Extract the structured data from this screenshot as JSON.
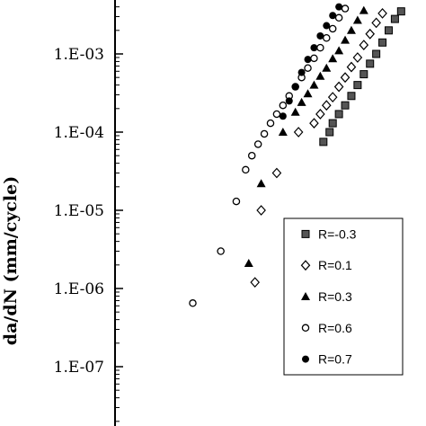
{
  "chart_data": {
    "type": "scatter",
    "title": "",
    "xlabel": "",
    "ylabel": "da/dN (mm/cycle)",
    "yscale": "log",
    "y_ticks": [
      "1.E-03",
      "1.E-04",
      "1.E-05",
      "1.E-06",
      "1.E-07"
    ],
    "y_tick_values": [
      0.001,
      0.0001,
      1e-05,
      1e-06,
      1e-07
    ],
    "ylim": [
      1e-08,
      0.01
    ],
    "xlim": [
      0,
      1
    ],
    "x_ticks": [],
    "grid": false,
    "legend_position": "bottom-right",
    "series": [
      {
        "name": "R=-0.3",
        "marker": "square",
        "points": [
          [
            0.67,
            7.5e-05
          ],
          [
            0.69,
            0.0001
          ],
          [
            0.7,
            0.00013
          ],
          [
            0.72,
            0.00017
          ],
          [
            0.74,
            0.00022
          ],
          [
            0.76,
            0.00029
          ],
          [
            0.78,
            0.0004
          ],
          [
            0.8,
            0.00055
          ],
          [
            0.82,
            0.00075
          ],
          [
            0.84,
            0.001
          ],
          [
            0.86,
            0.0014
          ],
          [
            0.88,
            0.002
          ],
          [
            0.9,
            0.0028
          ],
          [
            0.92,
            0.0035
          ]
        ]
      },
      {
        "name": "R=0.1",
        "marker": "diamond",
        "points": [
          [
            0.45,
            1.2e-06
          ],
          [
            0.47,
            1e-05
          ],
          [
            0.52,
            3e-05
          ],
          [
            0.59,
            0.0001
          ],
          [
            0.64,
            0.00013
          ],
          [
            0.66,
            0.00017
          ],
          [
            0.68,
            0.00022
          ],
          [
            0.7,
            0.00028
          ],
          [
            0.72,
            0.00038
          ],
          [
            0.74,
            0.0005
          ],
          [
            0.76,
            0.00068
          ],
          [
            0.78,
            0.0009
          ],
          [
            0.8,
            0.0013
          ],
          [
            0.82,
            0.0018
          ],
          [
            0.84,
            0.0025
          ],
          [
            0.86,
            0.0033
          ]
        ]
      },
      {
        "name": "R=0.3",
        "marker": "triangle",
        "points": [
          [
            0.43,
            2.1e-06
          ],
          [
            0.47,
            2.2e-05
          ],
          [
            0.54,
            0.0001
          ],
          [
            0.58,
            0.00018
          ],
          [
            0.6,
            0.00024
          ],
          [
            0.62,
            0.00031
          ],
          [
            0.64,
            0.0004
          ],
          [
            0.66,
            0.00052
          ],
          [
            0.68,
            0.00066
          ],
          [
            0.7,
            0.00087
          ],
          [
            0.72,
            0.0011
          ],
          [
            0.74,
            0.0015
          ],
          [
            0.76,
            0.002
          ],
          [
            0.78,
            0.0027
          ],
          [
            0.8,
            0.0036
          ]
        ]
      },
      {
        "name": "R=0.6",
        "marker": "circle-open",
        "points": [
          [
            0.25,
            6.5e-07
          ],
          [
            0.34,
            3e-06
          ],
          [
            0.39,
            1.3e-05
          ],
          [
            0.42,
            3.3e-05
          ],
          [
            0.44,
            5e-05
          ],
          [
            0.46,
            7e-05
          ],
          [
            0.48,
            9.5e-05
          ],
          [
            0.5,
            0.00013
          ],
          [
            0.52,
            0.00017
          ],
          [
            0.54,
            0.00022
          ],
          [
            0.56,
            0.00029
          ],
          [
            0.58,
            0.00038
          ],
          [
            0.6,
            0.0005
          ],
          [
            0.62,
            0.00066
          ],
          [
            0.64,
            0.00088
          ],
          [
            0.66,
            0.0012
          ],
          [
            0.68,
            0.0016
          ],
          [
            0.7,
            0.0021
          ],
          [
            0.72,
            0.0029
          ],
          [
            0.74,
            0.0038
          ]
        ]
      },
      {
        "name": "R=0.7",
        "marker": "circle-filled",
        "points": [
          [
            0.54,
            0.00016
          ],
          [
            0.56,
            0.00025
          ],
          [
            0.58,
            0.00038
          ],
          [
            0.6,
            0.00058
          ],
          [
            0.62,
            0.00085
          ],
          [
            0.64,
            0.0012
          ],
          [
            0.66,
            0.0017
          ],
          [
            0.68,
            0.0023
          ],
          [
            0.7,
            0.0031
          ],
          [
            0.72,
            0.004
          ]
        ]
      }
    ]
  }
}
